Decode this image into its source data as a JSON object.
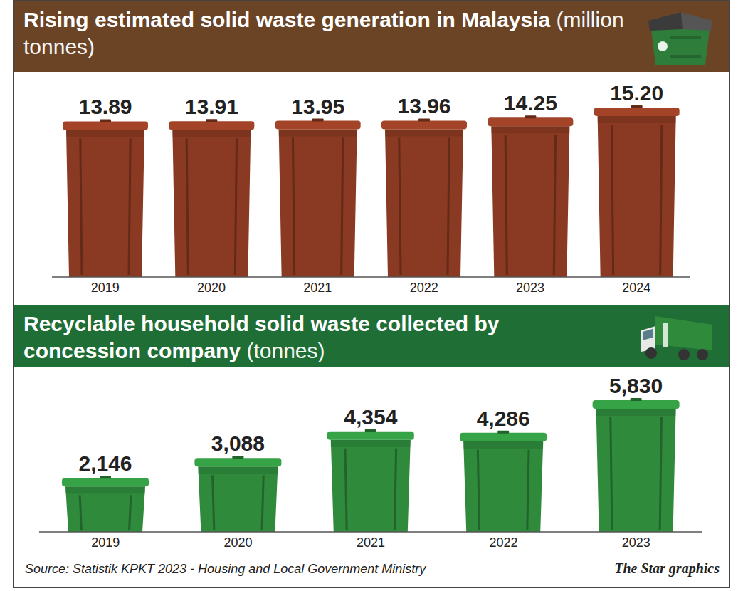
{
  "chart_data": [
    {
      "type": "bar",
      "title": "Rising estimated solid waste generation in Malaysia",
      "subtitle": "(million tonnes)",
      "categories": [
        "2019",
        "2020",
        "2021",
        "2022",
        "2023",
        "2024"
      ],
      "values": [
        13.89,
        13.91,
        13.95,
        13.96,
        14.25,
        15.2
      ],
      "value_labels": [
        "13.89",
        "13.91",
        "13.95",
        "13.96",
        "14.25",
        "15.20"
      ],
      "color": "#8a3a22",
      "data_labels": true,
      "tick_labels": "x"
    },
    {
      "type": "bar",
      "title": "Recyclable household solid waste collected by concession company",
      "subtitle": "(tonnes)",
      "categories": [
        "2019",
        "2020",
        "2021",
        "2022",
        "2023"
      ],
      "values": [
        2146,
        3088,
        4354,
        4286,
        5830
      ],
      "value_labels": [
        "2,146",
        "3,088",
        "4,354",
        "4,286",
        "5,830"
      ],
      "color": "#2f8a3c",
      "data_labels": true,
      "tick_labels": "x"
    }
  ],
  "source": "Source: Statistik KPKT 2023 - Housing and Local Government Ministry",
  "credit": "The Star graphics"
}
